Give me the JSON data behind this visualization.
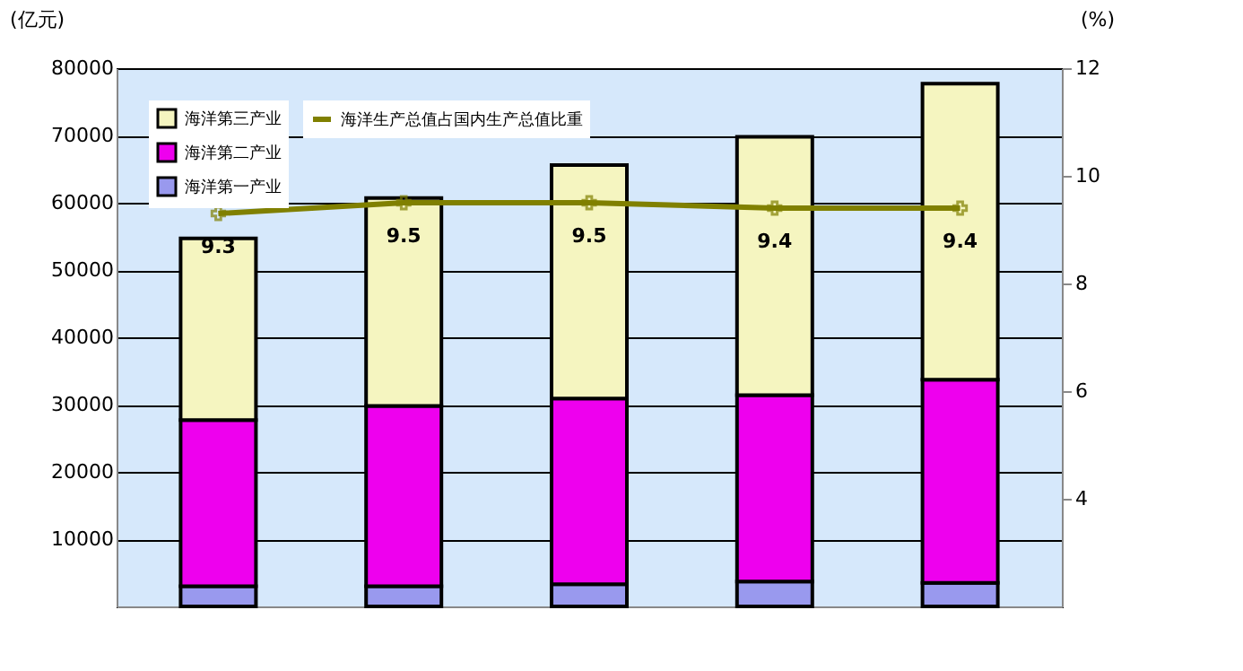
{
  "chart_data": {
    "type": "bar",
    "stacked": true,
    "categories": [
      null,
      null,
      null,
      null,
      null
    ],
    "ylabel": "(亿元)",
    "y2label": "(%)",
    "series": [
      {
        "name": "海洋第一产业",
        "color": "#9999ee",
        "values": [
          3000,
          3000,
          3300,
          3700,
          3500
        ]
      },
      {
        "name": "海洋第二产业",
        "color": "#ee00ee",
        "values": [
          24700,
          26800,
          27600,
          27700,
          30200
        ]
      },
      {
        "name": "海洋第三产业",
        "color": "#f5f5c0",
        "values": [
          27000,
          30900,
          34700,
          38400,
          44000
        ]
      },
      {
        "name": "海洋生产总值占国内生产总值比重",
        "type": "line",
        "axis": "y2",
        "color": "#808000",
        "marker": "cross",
        "values": [
          9.3,
          9.5,
          9.5,
          9.4,
          9.4
        ],
        "value_labels": [
          "9.3",
          "9.5",
          "9.5",
          "9.4",
          "9.4"
        ]
      }
    ],
    "ylim": [
      0,
      80000
    ],
    "yticks": [
      10000,
      20000,
      30000,
      40000,
      50000,
      60000,
      70000,
      80000
    ],
    "y2lim": [
      2,
      12
    ],
    "y2ticks": [
      4,
      6,
      8,
      10,
      12
    ],
    "grid": "y",
    "legend": "top left"
  }
}
